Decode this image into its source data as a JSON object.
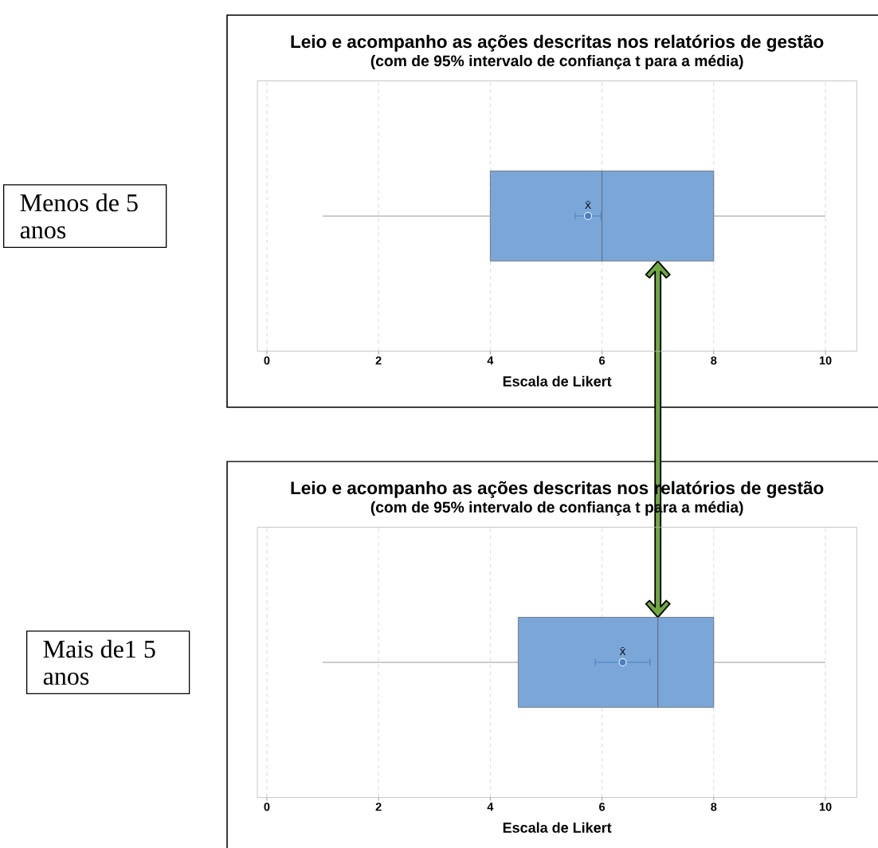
{
  "chart_data": [
    {
      "type": "box",
      "orientation": "horizontal",
      "title": "Leio e acompanho as ações descritas nos relatórios de gestão",
      "subtitle": "(com de 95% intervalo de confiança t para a média)",
      "xlabel": "Escala de Likert",
      "categories": [
        "Menos de 5 anos"
      ],
      "series": [
        {
          "color": "#7ba6d8",
          "boxes": [
            {
              "low": 1,
              "q1": 4,
              "median": 6,
              "q3": 8,
              "high": 10
            }
          ]
        },
        {
          "type": "scatter",
          "name": "X̄",
          "color": "#4a80c2",
          "marker": "circle",
          "values": [
            5.75
          ],
          "errors": [
            [
              5.52,
              5.98
            ]
          ]
        }
      ],
      "xlim": [
        -0.17,
        10.56
      ],
      "xticks": [
        0,
        2,
        4,
        6,
        8,
        10
      ],
      "grid": "x"
    },
    {
      "type": "box",
      "orientation": "horizontal",
      "title": "Leio e acompanho as ações descritas nos relatórios de gestão",
      "subtitle": "(com de 95% intervalo de confiança t para a média)",
      "xlabel": "Escala de Likert",
      "categories": [
        "Mais de1 5 anos"
      ],
      "series": [
        {
          "color": "#7ba6d8",
          "boxes": [
            {
              "low": 1,
              "q1": 4.5,
              "median": 7,
              "q3": 8,
              "high": 10
            }
          ]
        },
        {
          "type": "scatter",
          "name": "X̄",
          "color": "#4a80c2",
          "marker": "circle",
          "values": [
            6.37
          ],
          "errors": [
            [
              5.88,
              6.86
            ]
          ]
        }
      ],
      "xlim": [
        -0.17,
        10.56
      ],
      "xticks": [
        0,
        2,
        4,
        6,
        8,
        10
      ],
      "grid": "x"
    }
  ]
}
